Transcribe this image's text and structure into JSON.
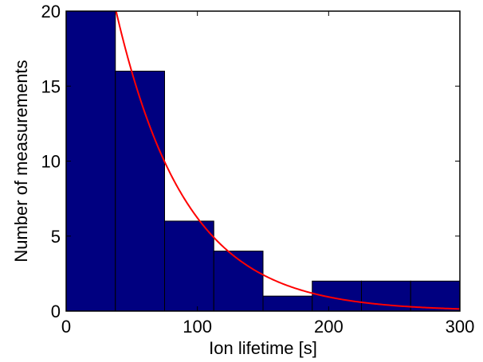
{
  "chart_data": {
    "type": "bar",
    "title": "",
    "xlabel": "Ion lifetime [s]",
    "ylabel": "Number of measurements",
    "xlim": [
      0,
      300
    ],
    "ylim": [
      0,
      20
    ],
    "xticks": [
      0,
      100,
      200,
      300
    ],
    "yticks": [
      0,
      5,
      10,
      15,
      20
    ],
    "xtick_labels": [
      "0",
      "100",
      "200",
      "300"
    ],
    "ytick_labels": [
      "0",
      "5",
      "10",
      "15",
      "20"
    ],
    "grid": false,
    "legend": "none",
    "bins": [
      {
        "x0": 0,
        "x1": 37.5,
        "count": 20
      },
      {
        "x0": 37.5,
        "x1": 75,
        "count": 16
      },
      {
        "x0": 75,
        "x1": 112.5,
        "count": 6
      },
      {
        "x0": 112.5,
        "x1": 150,
        "count": 4
      },
      {
        "x0": 150,
        "x1": 187.5,
        "count": 1
      },
      {
        "x0": 187.5,
        "x1": 225,
        "count": 2
      },
      {
        "x0": 225,
        "x1": 262.5,
        "count": 2
      },
      {
        "x0": 262.5,
        "x1": 300,
        "count": 2
      }
    ],
    "fit_curve": {
      "type": "exponential",
      "amplitude": 41,
      "decay_time": 53
    },
    "colors": {
      "bar_fill": "#000080",
      "bar_edge": "#000000",
      "fit_line": "#ff0000"
    }
  }
}
